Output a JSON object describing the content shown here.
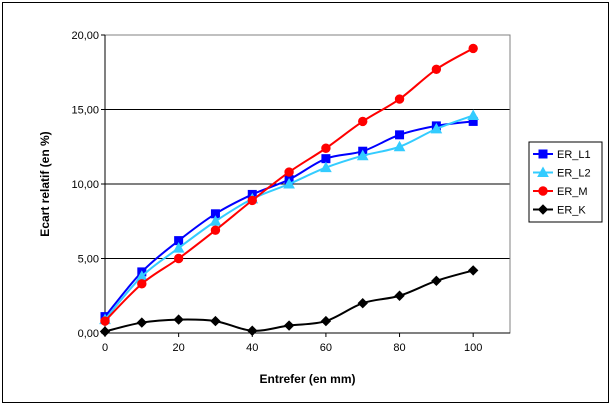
{
  "chart_data": {
    "type": "line",
    "title": "",
    "xlabel": "Entrefer (en mm)",
    "ylabel": "Ecart relatif (en %)",
    "xlim": [
      0,
      110
    ],
    "ylim": [
      0,
      20
    ],
    "x_ticks": [
      0,
      20,
      40,
      60,
      80,
      100
    ],
    "x_tick_labels": [
      "0",
      "20",
      "40",
      "60",
      "80",
      "100"
    ],
    "y_ticks": [
      0,
      5,
      10,
      15,
      20
    ],
    "y_tick_labels": [
      "0,00",
      "5,00",
      "10,00",
      "15,00",
      "20,00"
    ],
    "grid": "horizontal",
    "legend_position": "right",
    "series": [
      {
        "name": "ER_L1",
        "color": "#0000ff",
        "marker": "square",
        "x": [
          0,
          10,
          20,
          30,
          40,
          50,
          60,
          70,
          80,
          90,
          100
        ],
        "y": [
          1.1,
          4.1,
          6.2,
          8.0,
          9.3,
          10.3,
          11.7,
          12.2,
          13.3,
          13.9,
          14.2
        ]
      },
      {
        "name": "ER_L2",
        "color": "#33ccff",
        "marker": "triangle",
        "x": [
          0,
          10,
          20,
          30,
          40,
          50,
          60,
          70,
          80,
          90,
          100
        ],
        "y": [
          0.9,
          3.8,
          5.7,
          7.5,
          9.0,
          10.0,
          11.1,
          11.9,
          12.5,
          13.7,
          14.6
        ]
      },
      {
        "name": "ER_M",
        "color": "#ff0000",
        "marker": "circle",
        "x": [
          0,
          10,
          20,
          30,
          40,
          50,
          60,
          70,
          80,
          90,
          100
        ],
        "y": [
          0.8,
          3.3,
          5.0,
          6.9,
          8.9,
          10.8,
          12.4,
          14.2,
          15.7,
          17.7,
          19.1
        ]
      },
      {
        "name": "ER_K",
        "color": "#000000",
        "marker": "diamond",
        "x": [
          0,
          10,
          20,
          30,
          40,
          50,
          60,
          70,
          80,
          90,
          100
        ],
        "y": [
          0.1,
          0.7,
          0.9,
          0.8,
          0.15,
          0.5,
          0.8,
          2.0,
          2.5,
          3.5,
          4.2
        ]
      }
    ]
  }
}
